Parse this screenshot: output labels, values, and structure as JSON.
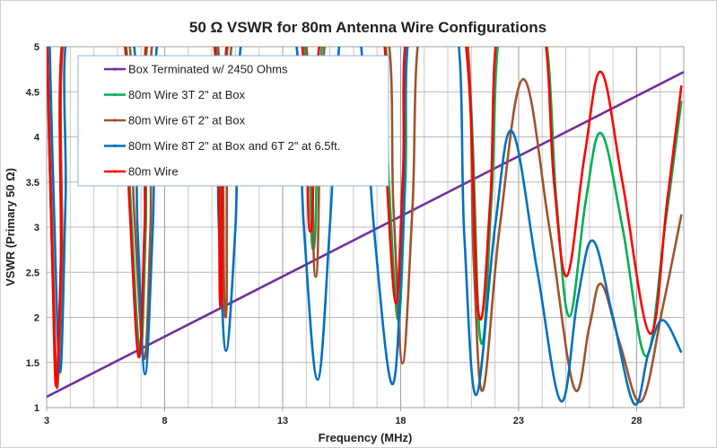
{
  "chart_data": {
    "type": "line",
    "title": "50 Ω VSWR for 80m Antenna Wire Configurations",
    "xlabel": "Frequency (MHz)",
    "ylabel": "VSWR (Primary 50 Ω)",
    "xlim": [
      3,
      30
    ],
    "ylim": [
      1,
      5
    ],
    "xticks": [
      "3",
      "8",
      "13",
      "18",
      "23",
      "28"
    ],
    "yticks": [
      "1",
      "1.5",
      "2",
      "2.5",
      "3",
      "3.5",
      "4",
      "4.5",
      "5"
    ],
    "grid": true,
    "legend_position": "top-left",
    "series": [
      {
        "name": "Box Terminated w/ 2450 Ohms",
        "color": "#7030a0",
        "points": [
          [
            3,
            1.12
          ],
          [
            30,
            4.72
          ]
        ]
      },
      {
        "name": "80m Wire 3T 2\" at Box",
        "color": "#00b050",
        "points": [
          [
            3,
            5.3
          ],
          [
            3.1,
            4.0
          ],
          [
            3.25,
            2.5
          ],
          [
            3.42,
            1.25
          ],
          [
            3.6,
            2.6
          ],
          [
            3.8,
            5.3
          ],
          [
            6.15,
            5.3
          ],
          [
            6.55,
            3.3
          ],
          [
            6.96,
            1.6
          ],
          [
            7.2,
            3.0
          ],
          [
            7.45,
            5.3
          ],
          [
            10.0,
            5.3
          ],
          [
            10.45,
            2.2
          ],
          [
            10.85,
            5.3
          ],
          [
            13.7,
            5.3
          ],
          [
            14.3,
            2.75
          ],
          [
            14.85,
            5.3
          ],
          [
            17.15,
            5.3
          ],
          [
            17.5,
            3.5
          ],
          [
            17.9,
            1.97
          ],
          [
            18.2,
            3.5
          ],
          [
            18.5,
            5.3
          ],
          [
            20.65,
            5.3
          ],
          [
            21.37,
            1.77
          ],
          [
            21.85,
            3.3
          ],
          [
            22.3,
            5.3
          ],
          [
            24.0,
            5.3
          ],
          [
            24.6,
            3.3
          ],
          [
            25.15,
            2.01
          ],
          [
            25.85,
            3.3
          ],
          [
            26.5,
            4.04
          ],
          [
            27.4,
            3.0
          ],
          [
            28.4,
            1.57
          ],
          [
            29.2,
            3.0
          ],
          [
            29.9,
            4.4
          ]
        ]
      },
      {
        "name": "80m Wire 6T 2\" at Box",
        "color": "#a0522d",
        "points": [
          [
            3,
            5.3
          ],
          [
            3.15,
            3.8
          ],
          [
            3.3,
            2.3
          ],
          [
            3.45,
            1.22
          ],
          [
            3.65,
            2.6
          ],
          [
            3.85,
            5.3
          ],
          [
            6.3,
            5.3
          ],
          [
            6.7,
            3.2
          ],
          [
            7.13,
            1.54
          ],
          [
            7.4,
            3.0
          ],
          [
            7.65,
            5.3
          ],
          [
            10.1,
            5.3
          ],
          [
            10.58,
            2.0
          ],
          [
            11.0,
            5.3
          ],
          [
            13.8,
            5.3
          ],
          [
            14.4,
            2.45
          ],
          [
            14.95,
            5.3
          ],
          [
            17.3,
            5.3
          ],
          [
            17.7,
            3.2
          ],
          [
            18.08,
            1.49
          ],
          [
            18.5,
            3.2
          ],
          [
            18.9,
            5.3
          ],
          [
            20.7,
            5.3
          ],
          [
            21.1,
            2.6
          ],
          [
            21.48,
            1.19
          ],
          [
            22.2,
            3.0
          ],
          [
            23.2,
            4.64
          ],
          [
            24.3,
            3.0
          ],
          [
            25.35,
            1.22
          ],
          [
            26.0,
            1.9
          ],
          [
            26.5,
            2.37
          ],
          [
            27.3,
            1.7
          ],
          [
            28.2,
            1.07
          ],
          [
            29.1,
            2.1
          ],
          [
            29.9,
            3.14
          ]
        ]
      },
      {
        "name": "80m Wire 8T 2\" at Box and 6T 2\" at 6.5ft.",
        "color": "#0070c0",
        "points": [
          [
            3.1,
            5.3
          ],
          [
            3.3,
            3.3
          ],
          [
            3.57,
            1.39
          ],
          [
            3.8,
            3.3
          ],
          [
            4.0,
            5.3
          ],
          [
            6.5,
            5.3
          ],
          [
            6.85,
            3.0
          ],
          [
            7.17,
            1.37
          ],
          [
            7.5,
            3.0
          ],
          [
            7.85,
            5.3
          ],
          [
            9.95,
            5.3
          ],
          [
            10.3,
            3.0
          ],
          [
            10.6,
            1.63
          ],
          [
            11.0,
            3.0
          ],
          [
            11.4,
            5.3
          ],
          [
            13.4,
            5.3
          ],
          [
            13.9,
            3.0
          ],
          [
            14.48,
            1.31
          ],
          [
            15.0,
            3.0
          ],
          [
            15.5,
            5.3
          ],
          [
            16.2,
            5.3
          ],
          [
            16.9,
            2.9
          ],
          [
            17.66,
            1.26
          ],
          [
            18.1,
            3.0
          ],
          [
            18.45,
            5.3
          ],
          [
            20.3,
            5.3
          ],
          [
            20.7,
            2.9
          ],
          [
            21.2,
            1.14
          ],
          [
            22.0,
            3.0
          ],
          [
            22.73,
            4.06
          ],
          [
            23.8,
            2.5
          ],
          [
            24.8,
            1.07
          ],
          [
            25.5,
            2.2
          ],
          [
            26.15,
            2.85
          ],
          [
            27.0,
            2.0
          ],
          [
            27.9,
            1.04
          ],
          [
            28.5,
            1.6
          ],
          [
            29.1,
            1.97
          ],
          [
            29.9,
            1.61
          ]
        ]
      },
      {
        "name": "80m Wire",
        "color": "#ff0000",
        "points": [
          [
            3,
            5.3
          ],
          [
            3.1,
            4.0
          ],
          [
            3.25,
            2.5
          ],
          [
            3.4,
            1.24
          ],
          [
            3.6,
            2.6
          ],
          [
            3.8,
            5.3
          ],
          [
            6.1,
            5.3
          ],
          [
            6.5,
            3.3
          ],
          [
            6.9,
            1.56
          ],
          [
            7.15,
            3.0
          ],
          [
            7.4,
            5.3
          ],
          [
            9.95,
            5.3
          ],
          [
            10.38,
            2.11
          ],
          [
            10.8,
            5.3
          ],
          [
            13.6,
            5.3
          ],
          [
            14.17,
            2.95
          ],
          [
            14.75,
            5.3
          ],
          [
            17.1,
            5.3
          ],
          [
            17.4,
            3.6
          ],
          [
            17.8,
            2.16
          ],
          [
            18.1,
            3.6
          ],
          [
            18.4,
            5.3
          ],
          [
            20.6,
            5.3
          ],
          [
            21.3,
            2.05
          ],
          [
            21.8,
            3.3
          ],
          [
            22.2,
            5.3
          ],
          [
            23.95,
            5.3
          ],
          [
            24.5,
            3.5
          ],
          [
            25.05,
            2.46
          ],
          [
            25.8,
            3.8
          ],
          [
            26.5,
            4.72
          ],
          [
            27.4,
            3.5
          ],
          [
            28.57,
            1.82
          ],
          [
            29.3,
            3.3
          ],
          [
            29.9,
            4.57
          ]
        ]
      }
    ]
  }
}
